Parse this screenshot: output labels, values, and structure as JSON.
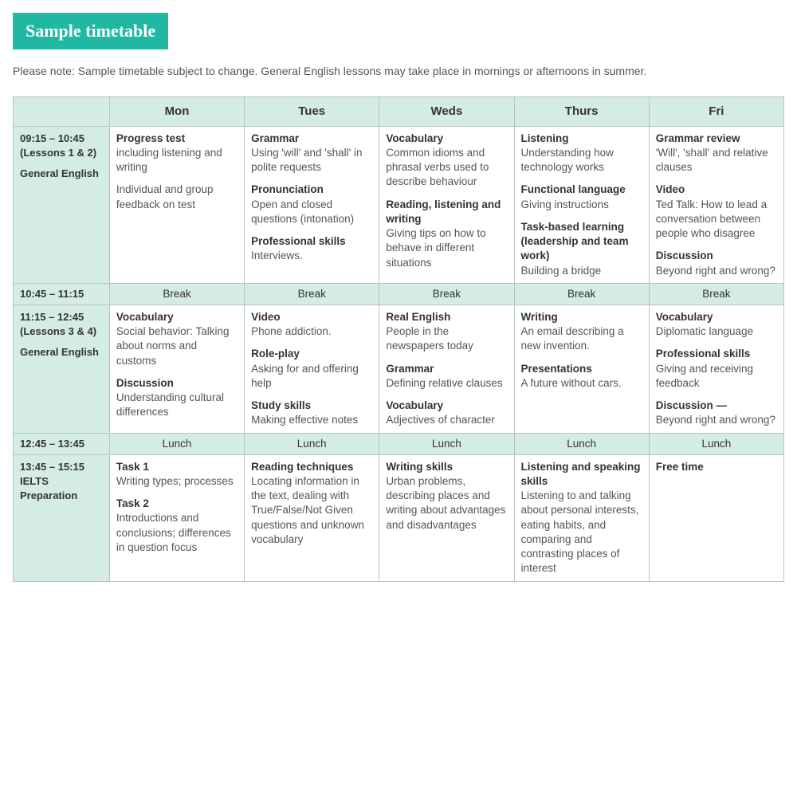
{
  "colors": {
    "accent": "#21b8a3",
    "tint": "#d5ece6",
    "border": "#b9c2c2",
    "text": "#4a4a4a",
    "heading_text": "#ffffff"
  },
  "title": "Sample timetable",
  "note": "Please note: Sample timetable subject to change. General English lessons may take place in mornings or afternoons in summer.",
  "days": [
    "Mon",
    "Tues",
    "Weds",
    "Thurs",
    "Fri"
  ],
  "rows": [
    {
      "kind": "session",
      "header": {
        "time": "09:15 – 10:45",
        "lessons": "(Lessons 1 & 2)",
        "course": "General English"
      },
      "cells": [
        [
          {
            "title": "Progress test",
            "desc": "including listening and writing"
          },
          {
            "title": "",
            "desc": "Individual and group feedback on test"
          }
        ],
        [
          {
            "title": "Grammar",
            "desc": "Using 'will' and 'shall' in polite requests"
          },
          {
            "title": "Pronunciation",
            "desc": "Open and closed questions (intonation)"
          },
          {
            "title": "Professional skills",
            "desc": "Interviews."
          }
        ],
        [
          {
            "title": "Vocabulary",
            "desc": "Common idioms and phrasal verbs used to describe behaviour"
          },
          {
            "title": "Reading, listening and writing",
            "desc": "Giving tips on how to behave in different situations"
          }
        ],
        [
          {
            "title": "Listening",
            "desc": "Understanding how technology works"
          },
          {
            "title": "Functional language",
            "desc": "Giving instructions"
          },
          {
            "title": "Task-based learning (leadership and team work)",
            "desc": "Building a bridge"
          }
        ],
        [
          {
            "title": "Grammar review",
            "desc": "'Will', 'shall' and relative clauses"
          },
          {
            "title": "Video",
            "desc": "Ted Talk: How to lead a conversation between people who disagree"
          },
          {
            "title": "Discussion",
            "desc": "Beyond right and wrong?"
          }
        ]
      ]
    },
    {
      "kind": "break",
      "header": {
        "time": "10:45 – 11:15"
      },
      "label": "Break"
    },
    {
      "kind": "session",
      "header": {
        "time": "11:15 – 12:45",
        "lessons": "(Lessons 3 & 4)",
        "course": "General English"
      },
      "cells": [
        [
          {
            "title": "Vocabulary",
            "desc": "Social behavior: Talking about norms and customs"
          },
          {
            "title": "Discussion",
            "desc": "Understanding cultural differences"
          }
        ],
        [
          {
            "title": "Video",
            "desc": "Phone addiction."
          },
          {
            "title": "Role-play",
            "desc": "Asking for and offering help"
          },
          {
            "title": "Study skills",
            "desc": "Making effective notes"
          }
        ],
        [
          {
            "title": "Real English",
            "desc": "People in the newspapers today"
          },
          {
            "title": "Grammar",
            "desc": "Defining relative clauses"
          },
          {
            "title": "Vocabulary",
            "desc": "Adjectives of character"
          }
        ],
        [
          {
            "title": "Writing",
            "desc": "An email describing a new invention."
          },
          {
            "title": "Presentations",
            "desc": "A future without cars."
          }
        ],
        [
          {
            "title": "Vocabulary",
            "desc": "Diplomatic language"
          },
          {
            "title": "Professional skills",
            "desc": "Giving and receiving feedback"
          },
          {
            "title": "Discussion —",
            "desc": "Beyond right and wrong?"
          }
        ]
      ]
    },
    {
      "kind": "break",
      "header": {
        "time": "12:45 – 13:45"
      },
      "label": "Lunch"
    },
    {
      "kind": "session",
      "header": {
        "time": "13:45 – 15:15",
        "lessons": "",
        "course": "IELTS Preparation"
      },
      "cells": [
        [
          {
            "title": "Task 1",
            "desc": "Writing types; processes"
          },
          {
            "title": "Task 2",
            "desc": "Introductions and conclusions; differences in question focus"
          }
        ],
        [
          {
            "title": "Reading techniques",
            "desc": "Locating information in the text, dealing with True/False/Not Given questions and unknown vocabulary"
          }
        ],
        [
          {
            "title": "Writing skills",
            "desc": "Urban problems, describing places and writing about advantages and disadvantages"
          }
        ],
        [
          {
            "title": "Listening and speaking skills",
            "desc": "Listening to and talking about personal interests, eating habits, and comparing and contrasting places of interest"
          }
        ],
        [
          {
            "title": "Free time",
            "desc": ""
          }
        ]
      ]
    }
  ]
}
